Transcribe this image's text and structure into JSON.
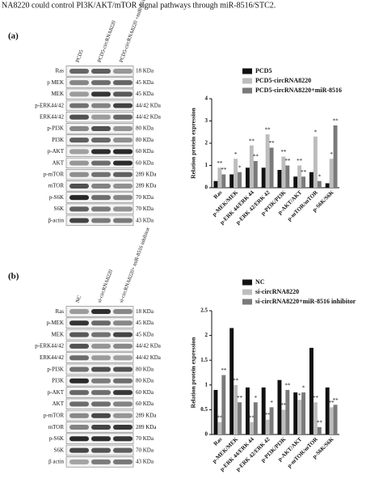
{
  "caption": "NA8220 could control PI3K/AKT/mTOR signal pathways through miR-8516/STC2.",
  "blots": [
    {
      "label": "(a)",
      "lanes": [
        "PCD5",
        "PCD5-circRNA8220",
        "PCD5-circRNA8220 +miR-8516"
      ],
      "rows": [
        {
          "protein": "Ras",
          "size": "18 KDa"
        },
        {
          "protein": "p MEK",
          "size": "45 KDa"
        },
        {
          "protein": "MEK",
          "size": "45 KDa"
        },
        {
          "protein": "p-ERK44/42",
          "size": "44/42 KDa"
        },
        {
          "protein": "ERK44/42",
          "size": "44/42 KDa"
        },
        {
          "protein": "p-PI3K",
          "size": "80 KDa"
        },
        {
          "protein": "PI3K",
          "size": "80 KDa"
        },
        {
          "protein": "p-AKT",
          "size": "60 KDa"
        },
        {
          "protein": "AKT",
          "size": "60 KDa"
        },
        {
          "protein": "p-mTOR",
          "size": "289 KDa"
        },
        {
          "protein": "mTOR",
          "size": "289 KDa"
        },
        {
          "protein": "p-S6K",
          "size": "70 KDa"
        },
        {
          "protein": "S6K",
          "size": "70 KDa"
        },
        {
          "protein": "β-actin",
          "size": "43 KDa"
        }
      ]
    },
    {
      "label": "(b)",
      "lanes": [
        "NC",
        "si-circRNA8220",
        "si-circRNA8220+ miR-8516 inhibitor"
      ],
      "rows": [
        {
          "protein": "Ras",
          "size": "18 KDa"
        },
        {
          "protein": "p-MEK",
          "size": "45 KDa"
        },
        {
          "protein": "MEK",
          "size": "45 KDa"
        },
        {
          "protein": "p-ERK44/42",
          "size": "44/42 KDa"
        },
        {
          "protein": "ERK44/42",
          "size": "44/42 KDa"
        },
        {
          "protein": "p-PI3K",
          "size": "80 KDa"
        },
        {
          "protein": "PI3K",
          "size": "80 KDa"
        },
        {
          "protein": "p-AKT",
          "size": "60 KDa"
        },
        {
          "protein": "AKT",
          "size": "60 KDa"
        },
        {
          "protein": "p-mTOR",
          "size": "289 KDa"
        },
        {
          "protein": "mTOR",
          "size": "289 KDa"
        },
        {
          "protein": "p-S6K",
          "size": "70 KDa"
        },
        {
          "protein": "S6K",
          "size": "70 KDa"
        },
        {
          "protein": "β actin",
          "size": "43 KDa"
        }
      ]
    }
  ],
  "chart_data": [
    {
      "type": "bar",
      "y_label": "Relation protein expression",
      "categories": [
        "Ras",
        "p-MEK/MEK",
        "p-ERK 44/ERK 44",
        "p-ERK 42/ERK 42",
        "p-PI3K/PI3K",
        "p-AKT/AKT",
        "p-mTOR/mTOR",
        "p-S6K/S6K"
      ],
      "series": [
        {
          "name": "PCD5",
          "color": "#111111",
          "values": [
            0.3,
            0.6,
            0.9,
            0.9,
            0.8,
            0.5,
            0.7,
            0.2
          ]
        },
        {
          "name": "PCD5-circRNA8220",
          "color": "#bdbdbd",
          "values": [
            0.9,
            1.3,
            1.9,
            2.4,
            1.4,
            1.0,
            2.3,
            1.3
          ],
          "annotations": [
            "**",
            "*",
            "**",
            "**",
            "**",
            "**",
            "*",
            "*"
          ]
        },
        {
          "name": "PCD5-circRNA8220+miR-8516",
          "color": "#7a7a7a",
          "values": [
            0.6,
            0.7,
            1.2,
            1.8,
            1.0,
            0.5,
            0.3,
            2.8
          ],
          "annotations": [
            "**",
            "*",
            "**",
            "**",
            "**",
            "**",
            "*",
            "**"
          ]
        }
      ],
      "ylim": [
        0,
        4
      ],
      "yticks": [
        0,
        1,
        2,
        3,
        4
      ]
    },
    {
      "type": "bar",
      "y_label": "Relation protein expression",
      "categories": [
        "Ras",
        "p-MEK/MEK",
        "p-ERK 44/ERK 44",
        "p-ERK 42/ERK 42",
        "p-PI3K/PI3K",
        "p-AKT/AKT",
        "p-mTOR/mTOR",
        "p-S6K/S6K"
      ],
      "series": [
        {
          "name": "NC",
          "color": "#111111",
          "values": [
            0.9,
            2.15,
            0.95,
            0.95,
            1.1,
            0.85,
            1.75,
            0.95
          ]
        },
        {
          "name": "si-circRNA8220",
          "color": "#bdbdbd",
          "values": [
            0.25,
            1.0,
            0.25,
            0.3,
            0.5,
            0.7,
            0.65,
            0.55
          ],
          "annotations": [
            "**",
            "**",
            "**",
            "**",
            "**",
            "*",
            "**",
            "**"
          ]
        },
        {
          "name": "si-circRNA8220+miR-8516 inhibitor",
          "color": "#7a7a7a",
          "values": [
            1.2,
            0.65,
            0.65,
            0.55,
            0.9,
            0.85,
            0.15,
            0.6
          ],
          "annotations": [
            "**",
            "**",
            "*",
            "*",
            "**",
            "*",
            "**",
            "**"
          ]
        }
      ],
      "ylim": [
        0,
        2.5
      ],
      "yticks": [
        0,
        0.5,
        1,
        1.5,
        2,
        2.5
      ]
    }
  ]
}
